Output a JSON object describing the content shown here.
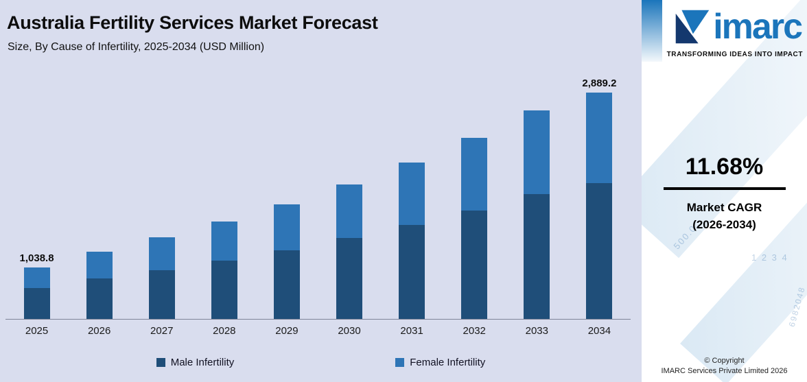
{
  "header": {
    "title": "Australia Fertility Services Market Forecast",
    "subtitle": "Size, By Cause of Infertility, 2025-2034 (USD Million)"
  },
  "chart_data": {
    "type": "bar",
    "stacked": true,
    "categories": [
      "2025",
      "2026",
      "2027",
      "2028",
      "2029",
      "2030",
      "2031",
      "2032",
      "2033",
      "2034"
    ],
    "series": [
      {
        "name": "Male Infertility",
        "color": "#1f4e79",
        "values": [
          623.3,
          716.9,
          800.7,
          894.2,
          998.7,
          1115.3,
          1245.5,
          1391.0,
          1553.4,
          1733.5
        ]
      },
      {
        "name": "Female Infertility",
        "color": "#2e75b6",
        "values": [
          415.5,
          478.0,
          533.8,
          596.1,
          665.8,
          743.5,
          830.4,
          927.3,
          1035.6,
          1155.7
        ]
      }
    ],
    "totals": [
      1038.8,
      1194.9,
      1334.5,
      1490.3,
      1664.5,
      1858.8,
      2075.9,
      2318.3,
      2589.0,
      2889.2
    ],
    "data_labels": {
      "first": "1,038.8",
      "last": "2,889.2"
    },
    "title": "Australia Fertility Services Market Forecast",
    "xlabel": "",
    "ylabel": "USD Million",
    "ylim": [
      0,
      3100
    ],
    "grid": false,
    "legend_position": "bottom"
  },
  "legend": {
    "items": [
      {
        "label": "Male Infertility",
        "color": "#1f4e79"
      },
      {
        "label": "Female Infertility",
        "color": "#2e75b6"
      }
    ]
  },
  "sidebar": {
    "logo_text": "imarc",
    "tagline": "TRANSFORMING IDEAS INTO IMPACT",
    "cagr_value": "11.68%",
    "cagr_label_line1": "Market CAGR",
    "cagr_label_line2": "(2026-2034)",
    "copyright_line1": "© Copyright",
    "copyright_line2": "IMARC Services Private Limited 2026",
    "watermarks": [
      "500.0",
      "1 2 3 4",
      "6982048"
    ]
  },
  "colors": {
    "chart_background": "#d9ddee",
    "brand_blue": "#1b75bb",
    "male_bar": "#1f4e79",
    "female_bar": "#2e75b6"
  }
}
